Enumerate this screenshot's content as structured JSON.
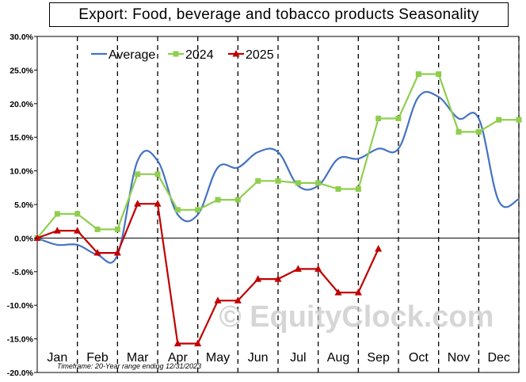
{
  "chart_data": {
    "type": "line",
    "title": "Export: Food, beverage and tobacco products Seasonality",
    "ylim": [
      -20,
      30
    ],
    "yticks": [
      30,
      25,
      20,
      15,
      10,
      5,
      0,
      -5,
      -10,
      -15,
      -20
    ],
    "ytick_labels": [
      "30.0%",
      "25.0%",
      "20.0%",
      "15.0%",
      "10.0%",
      "5.0%",
      "0.0%",
      "-5.0%",
      "-10.0%",
      "-15.0%",
      "-20.0%"
    ],
    "months": [
      "Jan",
      "Feb",
      "Mar",
      "Apr",
      "May",
      "Jun",
      "Jul",
      "Aug",
      "Sep",
      "Oct",
      "Nov",
      "Dec"
    ],
    "grid": "vertical dashed at month boundaries",
    "legend_position": "top-left",
    "series": [
      {
        "name": "Average",
        "color": "#4472c4",
        "marker": "none",
        "x": [
          0,
          1,
          2,
          3,
          4,
          5,
          6,
          7,
          8,
          9,
          10,
          11,
          12,
          13,
          14,
          15,
          16,
          17,
          18,
          19,
          20,
          21,
          22,
          23,
          24
        ],
        "values": [
          0.0,
          -1.0,
          -1.0,
          -2.5,
          -2.5,
          11.5,
          11.5,
          3.5,
          3.5,
          10.5,
          10.5,
          12.8,
          12.8,
          7.8,
          7.8,
          11.8,
          11.8,
          13.3,
          13.3,
          21.0,
          21.0,
          17.8,
          17.8,
          5.5,
          5.8
        ]
      },
      {
        "name": "2024",
        "color": "#8fce4e",
        "marker": "square",
        "x": [
          0,
          1,
          2,
          3,
          4,
          5,
          6,
          7,
          8,
          9,
          10,
          11,
          12,
          13,
          14,
          15,
          16,
          17,
          18,
          19,
          20,
          21,
          22,
          23,
          24
        ],
        "values": [
          0.0,
          3.6,
          3.6,
          1.3,
          1.3,
          9.5,
          9.5,
          4.2,
          4.2,
          5.7,
          5.7,
          8.5,
          8.5,
          8.2,
          8.2,
          7.3,
          7.3,
          17.8,
          17.8,
          24.4,
          24.4,
          15.8,
          15.8,
          17.6,
          17.6
        ]
      },
      {
        "name": "2025",
        "color": "#c00000",
        "marker": "triangle",
        "x": [
          0,
          1,
          2,
          3,
          4,
          5,
          6,
          7,
          8,
          9,
          10,
          11,
          12,
          13,
          14,
          15,
          16,
          17
        ],
        "values": [
          0.0,
          1.1,
          1.1,
          -2.2,
          -2.2,
          5.1,
          5.1,
          -15.7,
          -15.7,
          -9.3,
          -9.3,
          -6.1,
          -6.1,
          -4.6,
          -4.6,
          -8.1,
          -8.1,
          -1.6
        ]
      }
    ],
    "footnote": "Timeframe: 20-Year range ending 12/31/2023",
    "watermark": "© EquityClock.com"
  }
}
